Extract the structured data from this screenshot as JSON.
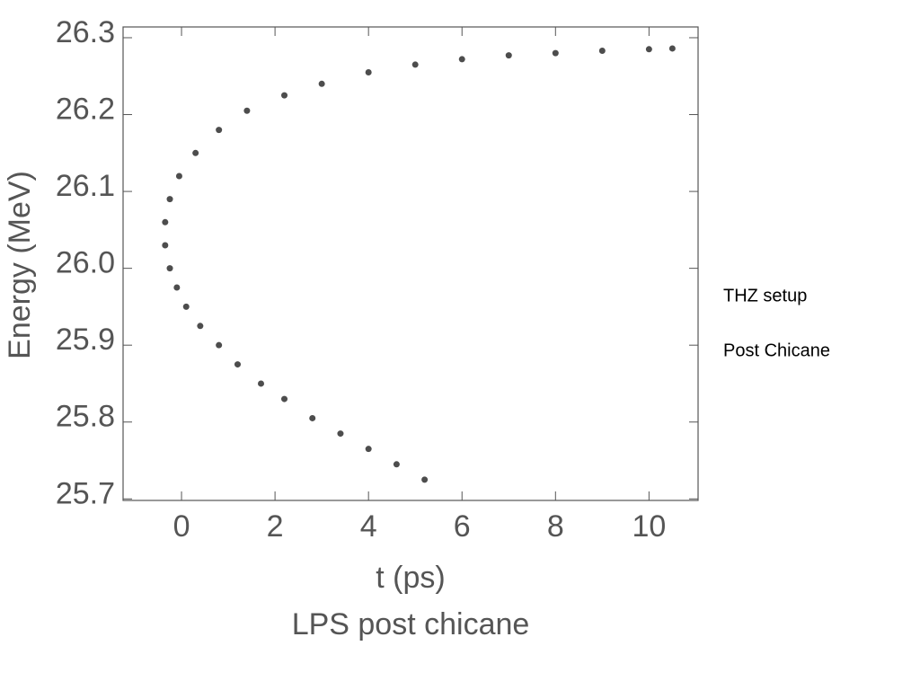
{
  "chart_data": {
    "type": "scatter",
    "title": "LPS post chicane",
    "x_label": "t (ps)",
    "y_label": "Energy (MeV)",
    "x": [
      5.2,
      4.6,
      4.0,
      3.4,
      2.8,
      2.2,
      1.7,
      1.2,
      0.8,
      0.4,
      0.1,
      -0.1,
      -0.25,
      -0.35,
      -0.35,
      -0.25,
      -0.05,
      0.3,
      0.8,
      1.4,
      2.2,
      3.0,
      4.0,
      5.0,
      6.0,
      7.0,
      8.0,
      9.0,
      10.0,
      10.5
    ],
    "values": [
      25.725,
      25.745,
      25.765,
      25.785,
      25.805,
      25.83,
      25.85,
      25.875,
      25.9,
      25.925,
      25.95,
      25.975,
      26.0,
      26.03,
      26.06,
      26.09,
      26.12,
      26.15,
      26.18,
      26.205,
      26.225,
      26.24,
      26.255,
      26.265,
      26.272,
      26.277,
      26.28,
      26.283,
      26.285,
      26.286
    ],
    "color": "#111111",
    "xlim": [
      -1.25,
      11.05
    ],
    "ylim": [
      25.698,
      26.314
    ],
    "xticks": [
      0,
      2,
      4,
      6,
      8,
      10
    ],
    "yticks": [
      25.7,
      25.8,
      25.9,
      {
        "value": 26,
        "label": "26.0"
      },
      26.1,
      26.2,
      26.3
    ]
  },
  "notes": [
    "THZ setup",
    "Post Chicane"
  ]
}
